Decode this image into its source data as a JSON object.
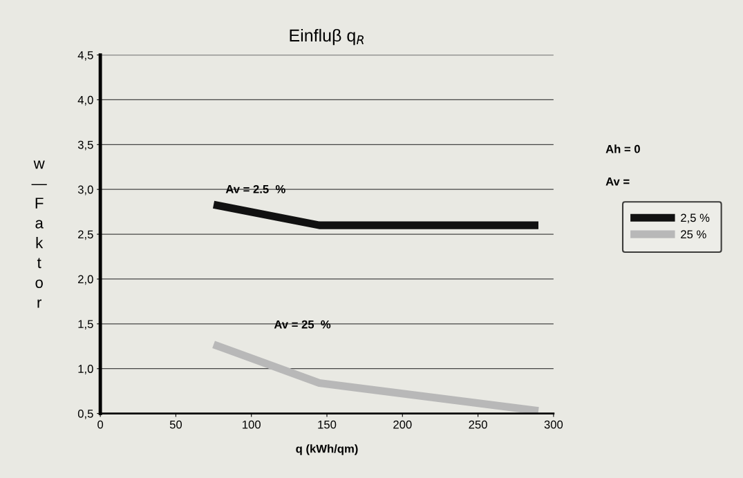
{
  "chart_data": {
    "type": "line",
    "title": "Einfluβ q$_{R}$",
    "xlabel": "q (kWh/qm)",
    "ylabel": "w—Faktor",
    "xlim": [
      0,
      300
    ],
    "xticks": [
      0,
      50,
      100,
      150,
      200,
      250,
      300
    ],
    "ylim": [
      0.5,
      4.5
    ],
    "yticks": [
      {
        "value": 0.5,
        "label": "0,5"
      },
      {
        "value": 1.0,
        "label": "1,0"
      },
      {
        "value": 1.5,
        "label": "1,5"
      },
      {
        "value": 2.0,
        "label": "2,0"
      },
      {
        "value": 2.5,
        "label": "2,5"
      },
      {
        "value": 3.0,
        "label": "3,0"
      },
      {
        "value": 3.5,
        "label": "3,5"
      },
      {
        "value": 4.0,
        "label": "4,0"
      },
      {
        "value": 4.5,
        "label": "4,5"
      }
    ],
    "grid": "y",
    "legend": "right",
    "marker": "none",
    "line_style": "solid",
    "series": [
      {
        "name": "2,5 %",
        "color": "#111111",
        "x": [
          75,
          145,
          290
        ],
        "values": [
          2.83,
          2.6,
          2.6
        ]
      },
      {
        "name": "25 %",
        "color": "#b8b8b8",
        "x": [
          75,
          145,
          290
        ],
        "values": [
          1.27,
          0.84,
          0.53
        ]
      }
    ],
    "annotations": [
      "Av = 2.5  %",
      "Av = 25  %",
      "Ah = 0",
      "Av ="
    ]
  }
}
